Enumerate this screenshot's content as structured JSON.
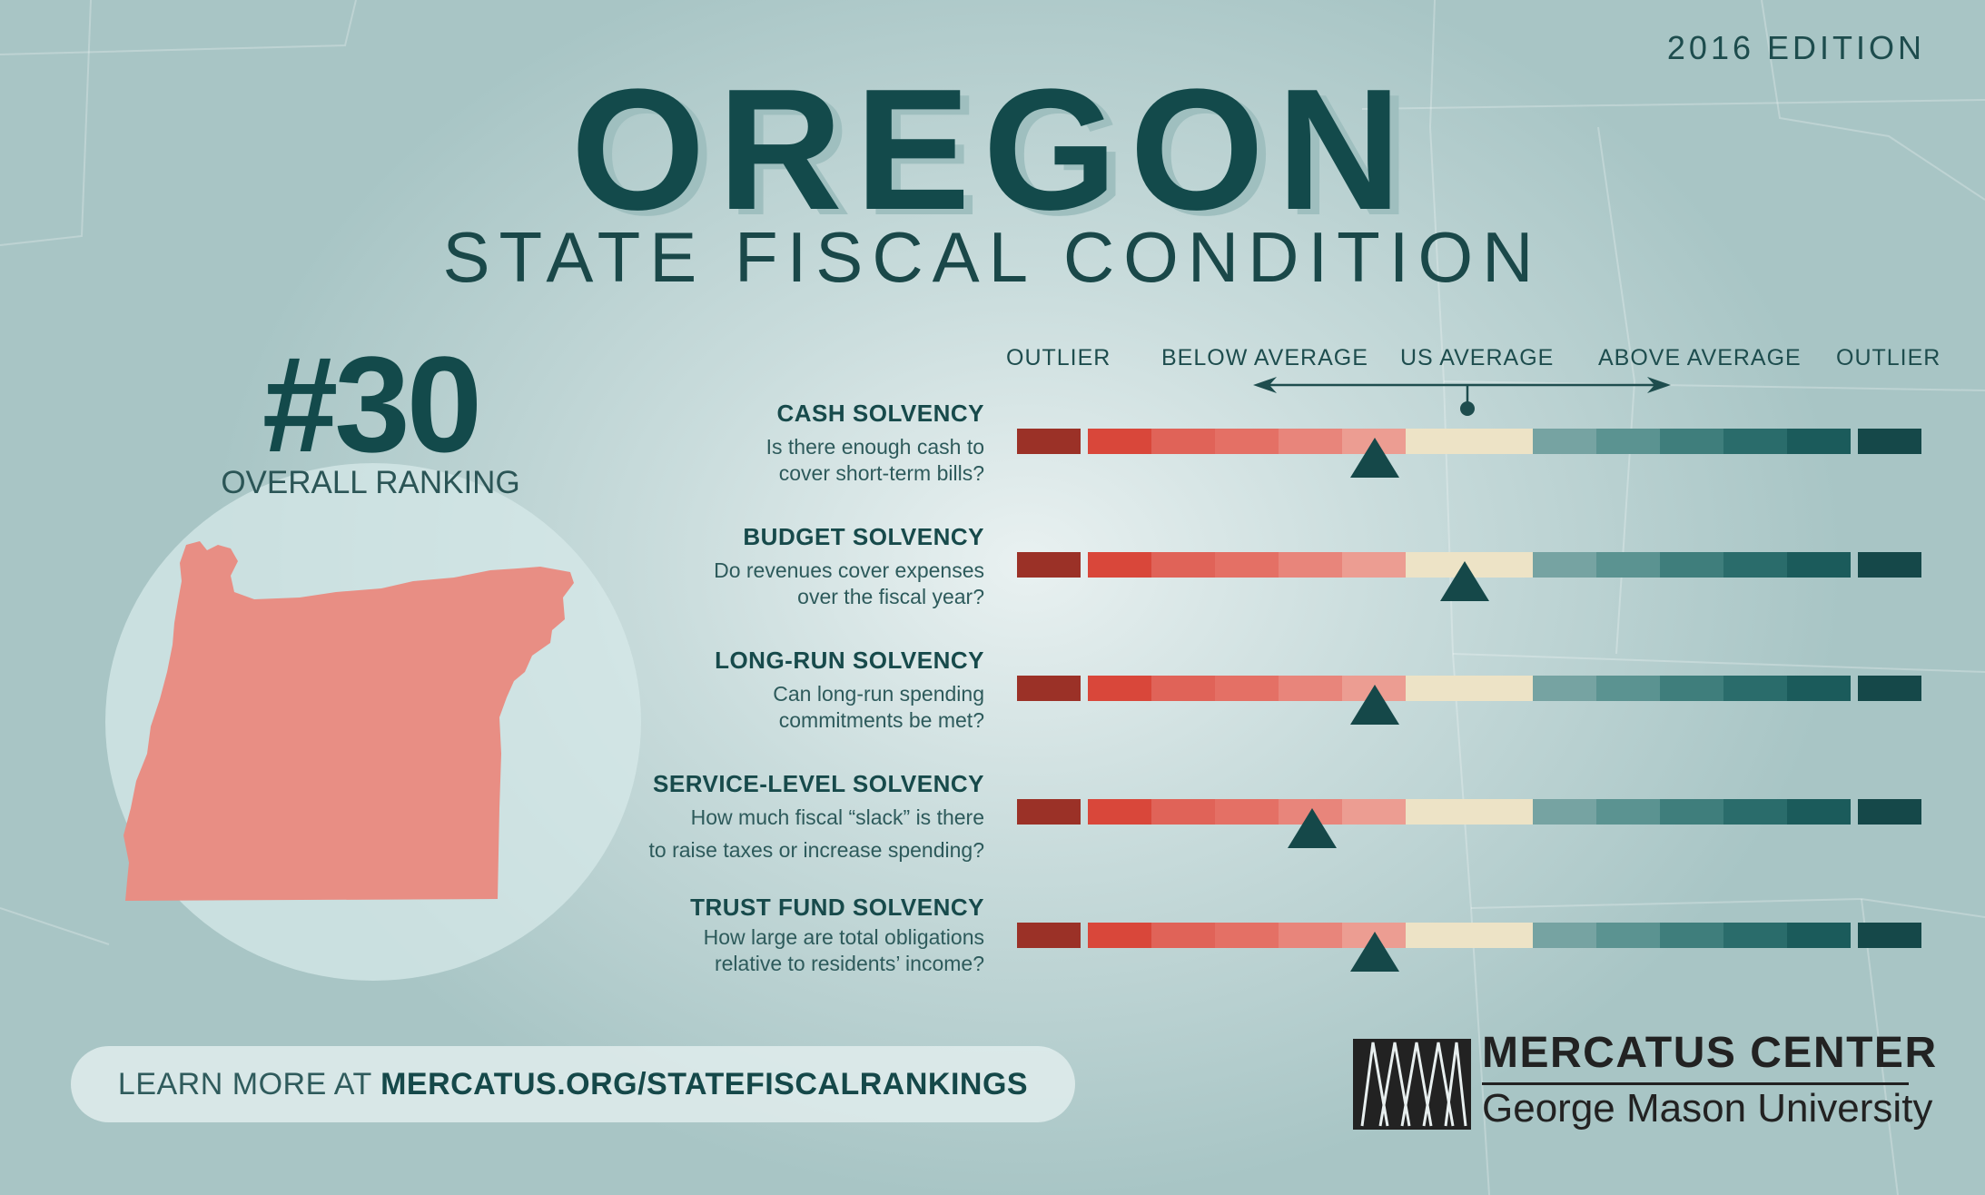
{
  "edition": "2016 EDITION",
  "title": "OREGON",
  "subtitle": "STATE FISCAL CONDITION",
  "ranking": {
    "number": "#30",
    "label": "OVERALL RANKING"
  },
  "scale_labels": [
    "OUTLIER",
    "BELOW AVERAGE",
    "US AVERAGE",
    "ABOVE AVERAGE",
    "OUTLIER"
  ],
  "colors": {
    "scale": [
      "#9b3127",
      "#d9473a",
      "#e06358",
      "#e47065",
      "#e8857b",
      "#ec9d92",
      "#ede3c6",
      "#76a3a2",
      "#5b9391",
      "#3f7e7c",
      "#2a6c6b",
      "#1b5b5b",
      "#154849"
    ],
    "marker": "#154849",
    "state_fill": "#e88e84"
  },
  "indicators": [
    {
      "title": "CASH SOLVENCY",
      "desc1": "Is there enough cash to",
      "desc2": "cover short-term bills?",
      "position": 0.4
    },
    {
      "title": "BUDGET SOLVENCY",
      "desc1": "Do revenues cover expenses",
      "desc2": "over the fiscal year?",
      "position": 0.5
    },
    {
      "title": "LONG-RUN SOLVENCY",
      "desc1": "Can long-run spending",
      "desc2": "commitments be met?",
      "position": 0.4
    },
    {
      "title": "SERVICE-LEVEL SOLVENCY",
      "desc1": "How much fiscal “slack” is there",
      "desc2": "to raise taxes or increase spending?",
      "position": 0.33
    },
    {
      "title": "TRUST FUND SOLVENCY",
      "desc1": "How large are total obligations",
      "desc2": "relative to residents’ income?",
      "position": 0.4
    }
  ],
  "footer": {
    "prefix": "LEARN MORE AT ",
    "link": "MERCATUS.ORG/STATEFISCALRANKINGS"
  },
  "logo": {
    "name": "MERCATUS CENTER",
    "sub": "George Mason University",
    "icon": "mercatus-logo-icon"
  }
}
